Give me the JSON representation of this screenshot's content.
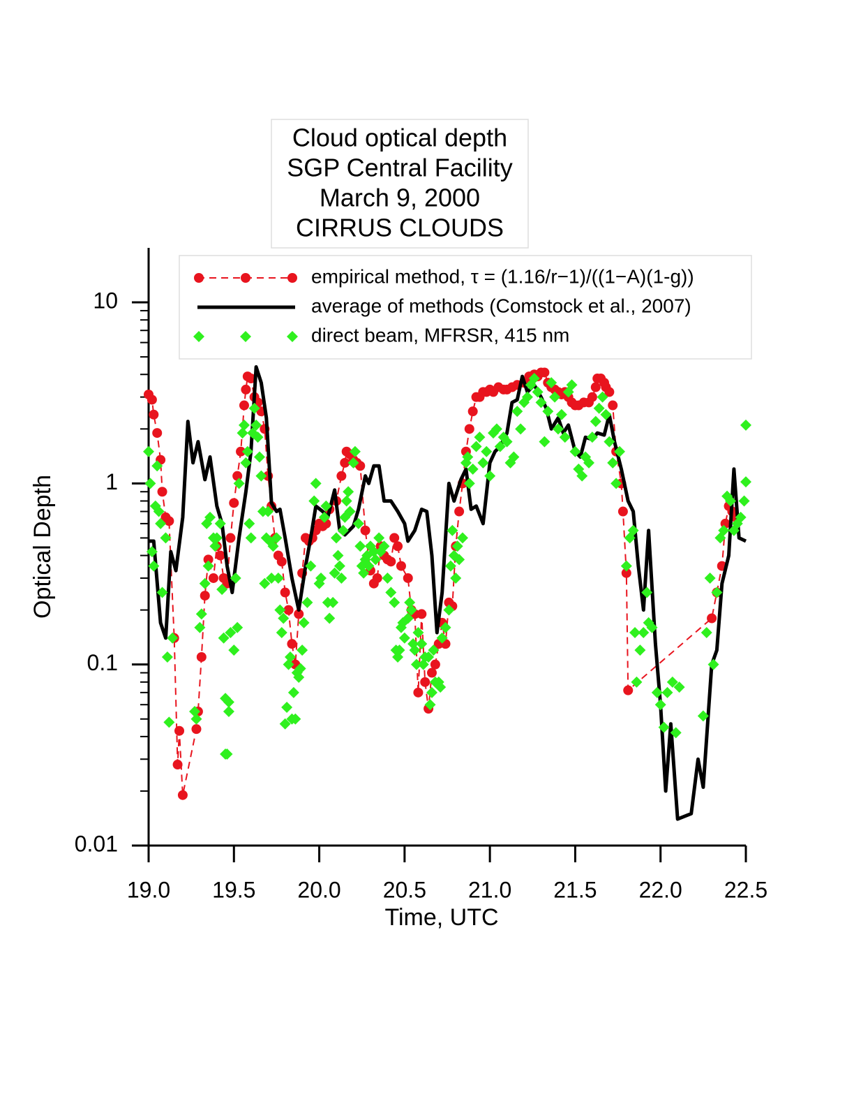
{
  "chart_data": {
    "type": "line",
    "title": [
      "Cloud optical depth",
      "SGP Central Facility",
      "March 9, 2000",
      "CIRRUS CLOUDS"
    ],
    "xlabel": "Time, UTC",
    "ylabel": "Optical Depth",
    "xlim": [
      19.0,
      22.5
    ],
    "xticks": [
      {
        "value": 19.0,
        "label": "19.0"
      },
      19.5,
      {
        "value": 20.0,
        "label": "20.0"
      },
      20.5,
      {
        "value": 21.0,
        "label": "21.0"
      },
      21.5,
      {
        "value": 22.0,
        "label": "22.0"
      },
      22.5
    ],
    "ylim": [
      0.01,
      20
    ],
    "yscale": "log",
    "yticks": [
      0.01,
      0.1,
      1,
      10
    ],
    "yminorticks": [
      0.02,
      0.03,
      0.04,
      0.05,
      0.06,
      0.07,
      0.08,
      0.09,
      0.2,
      0.3,
      0.4,
      0.5,
      0.6,
      0.7,
      0.8,
      0.9,
      2,
      3,
      4,
      5,
      6,
      7,
      8,
      9
    ],
    "series": [
      {
        "name": "empirical method, τ = (1.16/r−1)/((1−A)(1-g))",
        "color": "#e8141e",
        "line": "dashed",
        "marker": "circle",
        "x": [
          19.0,
          19.02,
          19.03,
          19.05,
          19.07,
          19.08,
          19.1,
          19.12,
          19.15,
          19.17,
          19.18,
          19.2,
          19.28,
          19.29,
          19.31,
          19.33,
          19.35,
          19.38,
          19.4,
          19.42,
          19.44,
          19.46,
          19.48,
          19.5,
          19.52,
          19.54,
          19.56,
          19.57,
          19.58,
          19.6,
          19.62,
          19.64,
          19.66,
          19.68,
          19.7,
          19.72,
          19.74,
          19.76,
          19.78,
          19.8,
          19.82,
          19.84,
          19.86,
          19.88,
          19.9,
          19.92,
          19.94,
          19.96,
          19.98,
          20.0,
          20.02,
          20.04,
          20.06,
          20.1,
          20.13,
          20.15,
          20.16,
          20.18,
          20.2,
          20.22,
          20.24,
          20.27,
          20.3,
          20.32,
          20.34,
          20.36,
          20.38,
          20.4,
          20.42,
          20.44,
          20.46,
          20.48,
          20.52,
          20.54,
          20.56,
          20.58,
          20.6,
          20.62,
          20.64,
          20.66,
          20.68,
          20.7,
          20.72,
          20.74,
          20.76,
          20.78,
          20.8,
          20.82,
          20.84,
          20.86,
          20.88,
          20.9,
          20.92,
          20.94,
          20.96,
          20.98,
          21.0,
          21.02,
          21.05,
          21.08,
          21.1,
          21.13,
          21.16,
          21.2,
          21.23,
          21.26,
          21.28,
          21.3,
          21.32,
          21.34,
          21.36,
          21.38,
          21.4,
          21.42,
          21.44,
          21.46,
          21.48,
          21.5,
          21.52,
          21.55,
          21.58,
          21.6,
          21.62,
          21.63,
          21.65,
          21.67,
          21.68,
          21.7,
          21.72,
          21.74,
          21.77,
          21.78,
          21.8,
          21.81,
          22.3,
          22.33,
          22.36,
          22.38,
          22.4,
          22.42,
          22.44
        ],
        "values": [
          3.1,
          2.9,
          2.4,
          1.9,
          1.35,
          0.9,
          0.65,
          0.62,
          0.14,
          0.028,
          0.043,
          0.019,
          0.044,
          0.055,
          0.11,
          0.24,
          0.38,
          0.3,
          0.45,
          0.4,
          0.3,
          0.28,
          0.5,
          0.78,
          1.1,
          1.5,
          2.7,
          3.3,
          3.9,
          3.8,
          3.0,
          2.8,
          2.5,
          2.0,
          1.1,
          0.75,
          0.5,
          0.4,
          0.37,
          0.25,
          0.2,
          0.13,
          0.1,
          0.19,
          0.32,
          0.5,
          0.48,
          0.5,
          0.55,
          0.6,
          0.58,
          0.6,
          0.72,
          0.8,
          1.1,
          1.3,
          1.5,
          1.45,
          1.35,
          1.3,
          1.25,
          0.55,
          0.33,
          0.28,
          0.3,
          0.45,
          0.4,
          0.38,
          0.37,
          0.5,
          0.45,
          0.35,
          0.3,
          0.2,
          0.19,
          0.07,
          0.19,
          0.08,
          0.057,
          0.09,
          0.1,
          0.13,
          0.17,
          0.13,
          0.22,
          0.21,
          0.45,
          0.7,
          1.0,
          1.5,
          2.0,
          2.5,
          3.0,
          3.0,
          3.2,
          3.2,
          3.3,
          3.2,
          3.4,
          3.3,
          3.3,
          3.4,
          3.5,
          3.6,
          3.9,
          4.0,
          3.9,
          4.1,
          4.1,
          3.6,
          3.4,
          3.3,
          3.2,
          3.1,
          3.2,
          3.0,
          2.8,
          2.7,
          2.7,
          2.8,
          2.8,
          3.0,
          3.4,
          3.8,
          3.8,
          3.6,
          3.4,
          3.2,
          2.7,
          1.5,
          1.0,
          0.7,
          0.32,
          0.072,
          0.18,
          0.25,
          0.35,
          0.6,
          0.75,
          0.7,
          0.65
        ]
      },
      {
        "name": "average of methods (Comstock et al., 2007)",
        "color": "#000000",
        "line": "solid",
        "marker": "none",
        "x": [
          19.0,
          19.03,
          19.07,
          19.1,
          19.13,
          19.16,
          19.2,
          19.23,
          19.26,
          19.29,
          19.33,
          19.36,
          19.4,
          19.43,
          19.46,
          19.49,
          19.53,
          19.57,
          19.6,
          19.63,
          19.66,
          19.69,
          19.72,
          19.75,
          19.77,
          19.8,
          19.84,
          19.88,
          19.92,
          19.95,
          19.98,
          20.02,
          20.05,
          20.09,
          20.12,
          20.15,
          20.2,
          20.23,
          20.27,
          20.29,
          20.32,
          20.35,
          20.38,
          20.42,
          20.46,
          20.5,
          20.52,
          20.56,
          20.6,
          20.63,
          20.66,
          20.69,
          20.72,
          20.76,
          20.79,
          20.83,
          20.86,
          20.89,
          20.92,
          20.96,
          21.0,
          21.03,
          21.06,
          21.1,
          21.13,
          21.16,
          21.19,
          21.22,
          21.26,
          21.3,
          21.33,
          21.36,
          21.4,
          21.43,
          21.46,
          21.5,
          21.53,
          21.56,
          21.6,
          21.63,
          21.67,
          21.7,
          21.73,
          21.77,
          21.81,
          21.84,
          21.87,
          21.9,
          21.93,
          21.97,
          22.0,
          22.03,
          22.06,
          22.1,
          22.18,
          22.22,
          22.25,
          22.3,
          22.33,
          22.36,
          22.4,
          22.43,
          22.46,
          22.5
        ],
        "values": [
          0.48,
          0.48,
          0.17,
          0.14,
          0.42,
          0.33,
          0.65,
          2.2,
          1.3,
          1.7,
          1.05,
          1.4,
          0.75,
          0.6,
          0.35,
          0.25,
          0.5,
          0.9,
          1.5,
          4.4,
          3.6,
          2.3,
          0.78,
          0.7,
          0.72,
          0.5,
          0.3,
          0.2,
          0.35,
          0.5,
          0.75,
          0.7,
          0.65,
          0.92,
          0.55,
          0.52,
          0.58,
          0.72,
          1.1,
          1.0,
          1.25,
          1.25,
          0.8,
          0.8,
          0.7,
          0.6,
          0.48,
          0.55,
          0.72,
          0.7,
          0.4,
          0.15,
          0.25,
          1.0,
          0.8,
          1.05,
          1.2,
          0.72,
          0.75,
          0.6,
          1.3,
          1.5,
          1.6,
          1.9,
          2.8,
          2.9,
          3.9,
          3.2,
          3.5,
          3.0,
          2.6,
          2.0,
          2.3,
          1.9,
          2.1,
          1.5,
          1.4,
          1.8,
          1.75,
          1.9,
          1.85,
          2.4,
          1.7,
          1.2,
          0.8,
          0.7,
          0.35,
          0.2,
          0.55,
          0.13,
          0.06,
          0.02,
          0.047,
          0.014,
          0.015,
          0.03,
          0.021,
          0.1,
          0.12,
          0.28,
          0.4,
          1.2,
          0.5,
          0.48
        ]
      },
      {
        "name": "direct beam, MFRSR, 415 nm",
        "color": "#2ff01e",
        "line": "none",
        "marker": "diamond",
        "x": [
          19.0,
          19.01,
          19.02,
          19.03,
          19.04,
          19.05,
          19.06,
          19.07,
          19.08,
          19.1,
          19.11,
          19.12,
          19.14,
          19.27,
          19.28,
          19.3,
          19.31,
          19.33,
          19.34,
          19.35,
          19.36,
          19.38,
          19.39,
          19.4,
          19.42,
          19.43,
          19.44,
          19.45,
          19.45,
          19.46,
          19.47,
          19.47,
          19.48,
          19.5,
          19.51,
          19.52,
          19.53,
          19.55,
          19.56,
          19.57,
          19.58,
          19.59,
          19.6,
          19.61,
          19.62,
          19.63,
          19.64,
          19.65,
          19.66,
          19.67,
          19.68,
          19.69,
          19.7,
          19.71,
          19.72,
          19.73,
          19.75,
          19.76,
          19.77,
          19.78,
          19.79,
          19.8,
          19.81,
          19.82,
          19.83,
          19.84,
          19.85,
          19.86,
          19.87,
          19.88,
          19.89,
          19.9,
          19.91,
          19.93,
          19.95,
          19.97,
          19.98,
          20.0,
          20.01,
          20.03,
          20.04,
          20.05,
          20.06,
          20.08,
          20.09,
          20.1,
          20.11,
          20.12,
          20.13,
          20.14,
          20.15,
          20.16,
          20.17,
          20.18,
          20.2,
          20.21,
          20.23,
          20.24,
          20.25,
          20.26,
          20.27,
          20.28,
          20.29,
          20.3,
          20.32,
          20.33,
          20.35,
          20.36,
          20.38,
          20.4,
          20.42,
          20.44,
          20.45,
          20.46,
          20.47,
          20.48,
          20.49,
          20.5,
          20.52,
          20.53,
          20.54,
          20.55,
          20.56,
          20.57,
          20.58,
          20.6,
          20.61,
          20.62,
          20.64,
          20.65,
          20.66,
          20.67,
          20.68,
          20.7,
          20.71,
          20.72,
          20.74,
          20.76,
          20.77,
          20.78,
          20.79,
          20.8,
          20.81,
          20.82,
          20.84,
          20.86,
          20.87,
          20.88,
          20.9,
          20.92,
          20.94,
          20.96,
          20.98,
          21.0,
          21.02,
          21.04,
          21.06,
          21.08,
          21.1,
          21.12,
          21.14,
          21.16,
          21.18,
          21.2,
          21.22,
          21.24,
          21.26,
          21.28,
          21.3,
          21.32,
          21.34,
          21.36,
          21.38,
          21.4,
          21.42,
          21.44,
          21.46,
          21.48,
          21.5,
          21.52,
          21.54,
          21.56,
          21.58,
          21.6,
          21.62,
          21.64,
          21.66,
          21.68,
          21.7,
          21.72,
          21.74,
          21.76,
          21.8,
          21.82,
          21.84,
          21.85,
          21.86,
          21.88,
          21.9,
          21.92,
          21.93,
          21.95,
          21.98,
          22.0,
          22.02,
          22.04,
          22.07,
          22.09,
          22.11,
          22.25,
          22.27,
          22.29,
          22.31,
          22.33,
          22.35,
          22.37,
          22.39,
          22.41,
          22.43,
          22.45,
          22.47,
          22.49,
          22.5,
          22.5
        ],
        "values": [
          1.5,
          1.0,
          0.42,
          0.35,
          0.75,
          1.25,
          0.7,
          0.6,
          0.25,
          0.5,
          0.11,
          0.048,
          0.14,
          0.055,
          0.05,
          0.16,
          0.19,
          0.28,
          0.6,
          0.35,
          0.65,
          0.5,
          0.45,
          0.5,
          0.6,
          0.26,
          0.14,
          0.065,
          0.032,
          0.032,
          0.062,
          0.055,
          0.15,
          0.12,
          0.3,
          0.16,
          1.0,
          1.9,
          2.1,
          1.3,
          1.5,
          0.6,
          0.5,
          1.9,
          2.6,
          2.1,
          1.8,
          1.4,
          1.1,
          0.7,
          0.28,
          0.5,
          0.7,
          0.48,
          0.3,
          0.45,
          0.5,
          0.3,
          0.2,
          0.15,
          0.18,
          0.047,
          0.058,
          0.1,
          0.11,
          0.05,
          0.07,
          0.05,
          0.09,
          0.085,
          0.095,
          0.12,
          0.17,
          0.22,
          0.35,
          0.8,
          1.0,
          0.28,
          0.3,
          0.65,
          0.75,
          0.22,
          0.18,
          0.22,
          0.32,
          0.5,
          0.4,
          0.35,
          0.3,
          0.55,
          0.65,
          0.8,
          0.9,
          0.7,
          1.3,
          1.5,
          0.6,
          0.45,
          0.35,
          0.32,
          0.38,
          0.4,
          0.35,
          0.45,
          0.42,
          0.38,
          0.5,
          0.42,
          0.45,
          0.3,
          0.25,
          0.22,
          0.12,
          0.11,
          0.12,
          0.16,
          0.17,
          0.14,
          0.18,
          0.22,
          0.2,
          0.13,
          0.12,
          0.1,
          0.15,
          0.13,
          0.1,
          0.11,
          0.11,
          0.06,
          0.07,
          0.12,
          0.08,
          0.08,
          0.075,
          0.14,
          0.16,
          0.2,
          0.35,
          0.55,
          0.4,
          0.3,
          0.45,
          0.38,
          0.5,
          1.3,
          1.4,
          1.0,
          1.2,
          1.6,
          1.8,
          1.3,
          1.5,
          1.1,
          1.9,
          2.0,
          1.6,
          1.8,
          1.7,
          1.3,
          1.4,
          2.5,
          2.0,
          2.8,
          3.0,
          3.5,
          3.8,
          3.2,
          2.8,
          1.7,
          2.5,
          3.6,
          3.0,
          2.0,
          2.4,
          1.8,
          3.2,
          3.5,
          1.5,
          1.2,
          1.1,
          1.4,
          1.3,
          1.8,
          2.2,
          2.6,
          3.0,
          2.4,
          1.7,
          1.3,
          1.0,
          1.5,
          0.35,
          0.5,
          0.55,
          0.15,
          0.08,
          0.12,
          0.15,
          0.25,
          0.17,
          0.16,
          0.07,
          0.06,
          0.045,
          0.07,
          0.08,
          0.042,
          0.075,
          0.052,
          0.15,
          0.3,
          0.1,
          0.25,
          0.5,
          0.55,
          0.85,
          0.8,
          0.55,
          0.6,
          0.65,
          0.8,
          2.1,
          1.02
        ]
      }
    ]
  }
}
